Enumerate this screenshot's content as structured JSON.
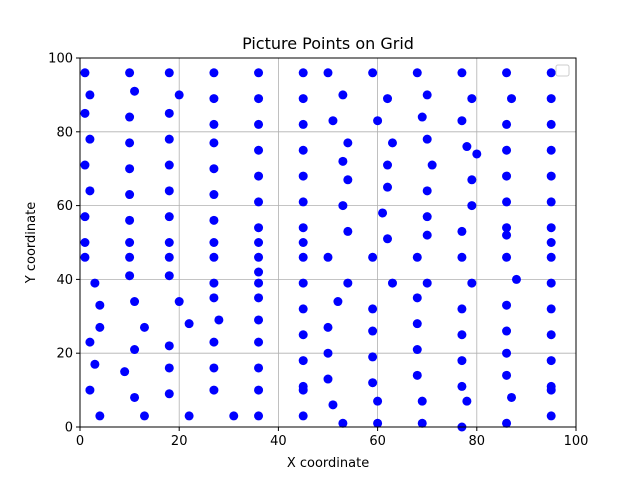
{
  "chart_data": {
    "type": "scatter",
    "title": "Picture Points on Grid",
    "xlabel": "X coordinate",
    "ylabel": "Y coordinate",
    "xlim": [
      0,
      100
    ],
    "ylim": [
      0,
      100
    ],
    "xticks": [
      "0",
      "20",
      "40",
      "60",
      "80",
      "100"
    ],
    "yticks": [
      "0",
      "20",
      "40",
      "60",
      "80",
      "100"
    ],
    "grid": true,
    "legend": "top-right",
    "marker_color": "#0000ff",
    "series": [
      {
        "points": [
          [
            1,
            96
          ],
          [
            10,
            96
          ],
          [
            18,
            96
          ],
          [
            27,
            96
          ],
          [
            36,
            96
          ],
          [
            45,
            96
          ],
          [
            50,
            96
          ],
          [
            59,
            96
          ],
          [
            68,
            96
          ],
          [
            77,
            96
          ],
          [
            86,
            96
          ],
          [
            95,
            96
          ],
          [
            2,
            90
          ],
          [
            11,
            91
          ],
          [
            20,
            90
          ],
          [
            27,
            89
          ],
          [
            36,
            89
          ],
          [
            45,
            89
          ],
          [
            53,
            90
          ],
          [
            62,
            89
          ],
          [
            70,
            90
          ],
          [
            79,
            89
          ],
          [
            87,
            89
          ],
          [
            95,
            89
          ],
          [
            1,
            85
          ],
          [
            10,
            84
          ],
          [
            18,
            85
          ],
          [
            27,
            82
          ],
          [
            36,
            82
          ],
          [
            45,
            82
          ],
          [
            51,
            83
          ],
          [
            60,
            83
          ],
          [
            69,
            84
          ],
          [
            77,
            83
          ],
          [
            86,
            82
          ],
          [
            95,
            82
          ],
          [
            2,
            78
          ],
          [
            10,
            77
          ],
          [
            18,
            78
          ],
          [
            27,
            77
          ],
          [
            36,
            75
          ],
          [
            45,
            75
          ],
          [
            54,
            77
          ],
          [
            63,
            77
          ],
          [
            70,
            78
          ],
          [
            78,
            76
          ],
          [
            80,
            74
          ],
          [
            86,
            75
          ],
          [
            95,
            75
          ],
          [
            1,
            71
          ],
          [
            10,
            70
          ],
          [
            18,
            71
          ],
          [
            27,
            70
          ],
          [
            36,
            68
          ],
          [
            45,
            68
          ],
          [
            53,
            72
          ],
          [
            54,
            67
          ],
          [
            62,
            71
          ],
          [
            71,
            71
          ],
          [
            79,
            67
          ],
          [
            86,
            68
          ],
          [
            95,
            68
          ],
          [
            2,
            64
          ],
          [
            10,
            63
          ],
          [
            18,
            64
          ],
          [
            27,
            63
          ],
          [
            36,
            61
          ],
          [
            45,
            61
          ],
          [
            53,
            60
          ],
          [
            62,
            65
          ],
          [
            70,
            64
          ],
          [
            79,
            60
          ],
          [
            86,
            61
          ],
          [
            95,
            61
          ],
          [
            1,
            57
          ],
          [
            10,
            56
          ],
          [
            18,
            57
          ],
          [
            27,
            56
          ],
          [
            36,
            54
          ],
          [
            45,
            54
          ],
          [
            54,
            53
          ],
          [
            61,
            58
          ],
          [
            70,
            57
          ],
          [
            77,
            53
          ],
          [
            86,
            54
          ],
          [
            86,
            52
          ],
          [
            95,
            54
          ],
          [
            1,
            50
          ],
          [
            10,
            50
          ],
          [
            18,
            50
          ],
          [
            27,
            50
          ],
          [
            36,
            50
          ],
          [
            45,
            50
          ],
          [
            62,
            51
          ],
          [
            70,
            52
          ],
          [
            95,
            50
          ],
          [
            1,
            46
          ],
          [
            10,
            46
          ],
          [
            18,
            46
          ],
          [
            27,
            46
          ],
          [
            36,
            46
          ],
          [
            45,
            46
          ],
          [
            50,
            46
          ],
          [
            59,
            46
          ],
          [
            68,
            46
          ],
          [
            77,
            46
          ],
          [
            86,
            46
          ],
          [
            95,
            46
          ],
          [
            10,
            41
          ],
          [
            18,
            41
          ],
          [
            36,
            42
          ],
          [
            3,
            39
          ],
          [
            27,
            39
          ],
          [
            36,
            39
          ],
          [
            45,
            39
          ],
          [
            54,
            39
          ],
          [
            63,
            39
          ],
          [
            70,
            39
          ],
          [
            79,
            39
          ],
          [
            88,
            40
          ],
          [
            95,
            39
          ],
          [
            4,
            33
          ],
          [
            11,
            34
          ],
          [
            20,
            34
          ],
          [
            27,
            35
          ],
          [
            36,
            35
          ],
          [
            45,
            32
          ],
          [
            52,
            34
          ],
          [
            59,
            32
          ],
          [
            68,
            35
          ],
          [
            77,
            32
          ],
          [
            86,
            33
          ],
          [
            95,
            32
          ],
          [
            4,
            27
          ],
          [
            13,
            27
          ],
          [
            22,
            28
          ],
          [
            28,
            29
          ],
          [
            36,
            29
          ],
          [
            45,
            25
          ],
          [
            50,
            27
          ],
          [
            59,
            26
          ],
          [
            68,
            28
          ],
          [
            77,
            25
          ],
          [
            86,
            26
          ],
          [
            95,
            25
          ],
          [
            2,
            23
          ],
          [
            11,
            21
          ],
          [
            18,
            22
          ],
          [
            27,
            23
          ],
          [
            36,
            23
          ],
          [
            45,
            18
          ],
          [
            50,
            20
          ],
          [
            59,
            19
          ],
          [
            68,
            21
          ],
          [
            77,
            18
          ],
          [
            86,
            20
          ],
          [
            95,
            18
          ],
          [
            3,
            17
          ],
          [
            9,
            15
          ],
          [
            18,
            16
          ],
          [
            27,
            16
          ],
          [
            36,
            16
          ],
          [
            45,
            11
          ],
          [
            45,
            10
          ],
          [
            50,
            13
          ],
          [
            59,
            12
          ],
          [
            68,
            14
          ],
          [
            77,
            11
          ],
          [
            86,
            14
          ],
          [
            95,
            11
          ],
          [
            95,
            10
          ],
          [
            2,
            10
          ],
          [
            11,
            8
          ],
          [
            18,
            9
          ],
          [
            27,
            10
          ],
          [
            36,
            10
          ],
          [
            51,
            6
          ],
          [
            60,
            7
          ],
          [
            69,
            7
          ],
          [
            78,
            7
          ],
          [
            87,
            8
          ],
          [
            4,
            3
          ],
          [
            13,
            3
          ],
          [
            22,
            3
          ],
          [
            31,
            3
          ],
          [
            36,
            3
          ],
          [
            45,
            3
          ],
          [
            95,
            3
          ],
          [
            53,
            1
          ],
          [
            60,
            1
          ],
          [
            69,
            1
          ],
          [
            77,
            0
          ],
          [
            86,
            1
          ]
        ]
      }
    ]
  }
}
